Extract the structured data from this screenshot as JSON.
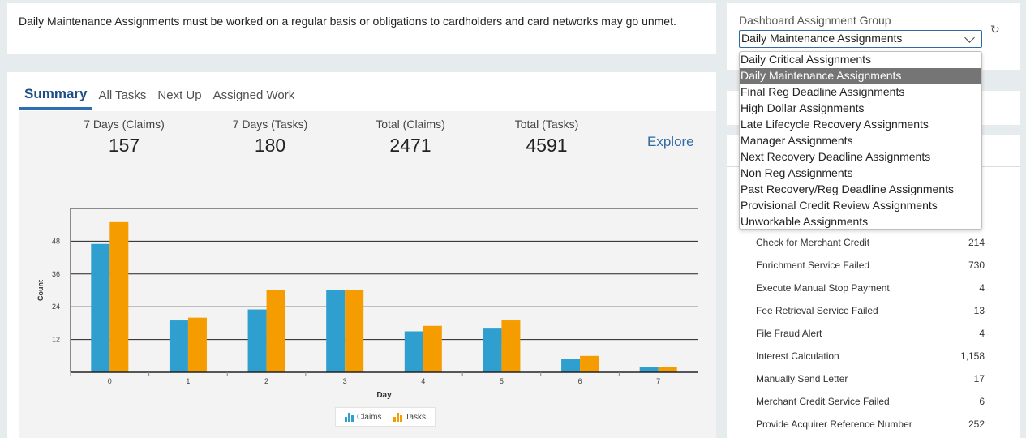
{
  "banner": {
    "text": "Daily Maintenance Assignments must be worked on a regular basis or obligations to cardholders and card networks may go unmet."
  },
  "tabs": [
    {
      "label": "Summary",
      "active": true
    },
    {
      "label": "All Tasks",
      "active": false
    },
    {
      "label": "Next Up",
      "active": false
    },
    {
      "label": "Assigned Work",
      "active": false
    }
  ],
  "stats": [
    {
      "label": "7 Days (Claims)",
      "value": "157"
    },
    {
      "label": "7 Days (Tasks)",
      "value": "180"
    },
    {
      "label": "Total (Claims)",
      "value": "2471"
    },
    {
      "label": "Total (Tasks)",
      "value": "4591"
    }
  ],
  "explore_label": "Explore",
  "chart_data": {
    "type": "bar",
    "categories": [
      "0",
      "1",
      "2",
      "3",
      "4",
      "5",
      "6",
      "7"
    ],
    "series": [
      {
        "name": "Claims",
        "color": "#2f9fd0",
        "values": [
          47,
          19,
          23,
          30,
          15,
          16,
          5,
          2
        ]
      },
      {
        "name": "Tasks",
        "color": "#f59c00",
        "values": [
          55,
          20,
          30,
          30,
          17,
          19,
          6,
          2
        ]
      }
    ],
    "xlabel": "Day",
    "ylabel": "Count",
    "yticks": [
      12,
      24,
      36,
      48
    ],
    "ylim": [
      0,
      60
    ],
    "grid": true,
    "legend": "bottom"
  },
  "dashboard": {
    "label": "Dashboard Assignment Group",
    "selected": "Daily Maintenance Assignments",
    "refresh_icon": "refresh-icon",
    "options": [
      "Daily Critical Assignments",
      "Daily Maintenance Assignments",
      "Final Reg Deadline Assignments",
      "High Dollar Assignments",
      "Late Lifecycle Recovery Assignments",
      "Manager Assignments",
      "Next Recovery Deadline Assignments",
      "Non Reg Assignments",
      "Past Recovery/Reg Deadline Assignments",
      "Provisional Credit Review Assignments",
      "Unworkable Assignments"
    ]
  },
  "task_counts": [
    {
      "name": "Check for Merchant Credit",
      "count": "214"
    },
    {
      "name": "Enrichment Service Failed",
      "count": "730"
    },
    {
      "name": "Execute Manual Stop Payment",
      "count": "4"
    },
    {
      "name": "Fee Retrieval Service Failed",
      "count": "13"
    },
    {
      "name": "File Fraud Alert",
      "count": "4"
    },
    {
      "name": "Interest Calculation",
      "count": "1,158"
    },
    {
      "name": "Manually Send Letter",
      "count": "17"
    },
    {
      "name": "Merchant Credit Service Failed",
      "count": "6"
    },
    {
      "name": "Provide Acquirer Reference Number",
      "count": "252"
    }
  ]
}
